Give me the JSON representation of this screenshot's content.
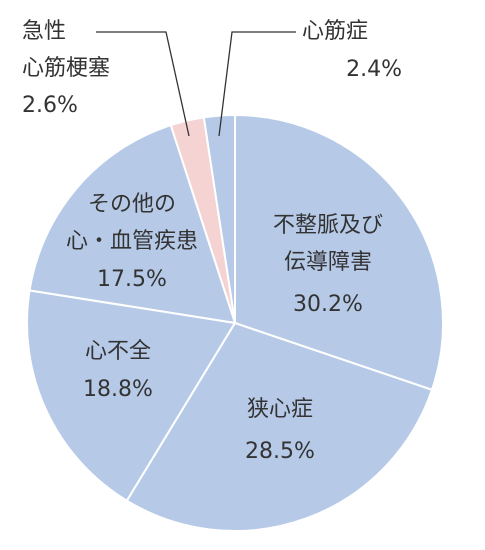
{
  "chart_data": {
    "type": "pie",
    "categories": [
      [
        "不整脈及び",
        "伝導障害"
      ],
      [
        "狭心症"
      ],
      [
        "心不全"
      ],
      [
        "その他の",
        "心・血管疾患"
      ],
      [
        "急性",
        "心筋梗塞"
      ],
      [
        "心筋症"
      ]
    ],
    "values": [
      30.2,
      28.5,
      18.8,
      17.5,
      2.6,
      2.4
    ],
    "value_labels": [
      "30.2%",
      "28.5%",
      "18.8%",
      "17.5%",
      "2.6%",
      "2.4%"
    ],
    "colors": [
      "#b6cae8",
      "#b6cae8",
      "#b6cae8",
      "#b6cae8",
      "#f6d3d3",
      "#b6cae8"
    ]
  }
}
